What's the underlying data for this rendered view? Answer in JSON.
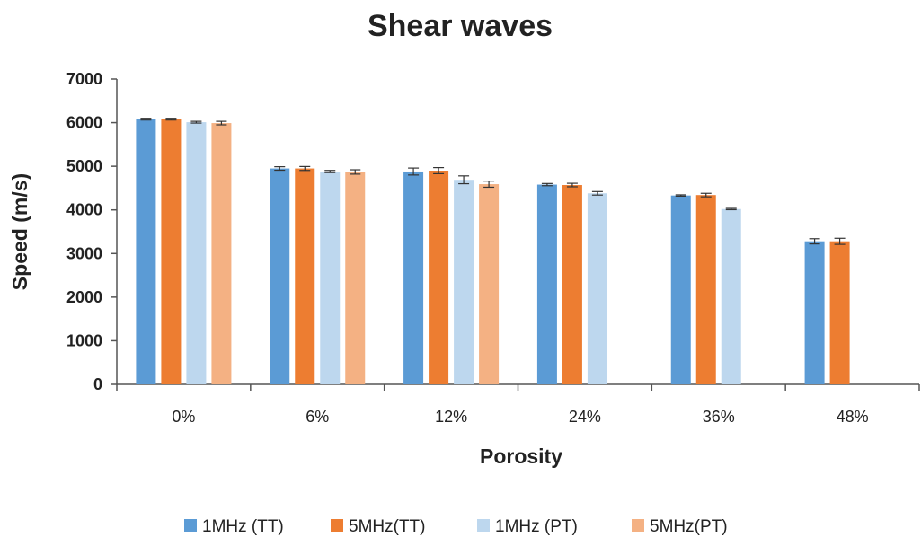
{
  "chart_data": {
    "type": "bar",
    "title": "Shear waves",
    "xlabel": "Porosity",
    "ylabel": "Speed (m/s)",
    "ylim": [
      0,
      7000
    ],
    "yticks": [
      0,
      1000,
      2000,
      3000,
      4000,
      5000,
      6000,
      7000
    ],
    "categories": [
      "0%",
      "6%",
      "12%",
      "24%",
      "36%",
      "48%"
    ],
    "grid": false,
    "legend_position": "bottom",
    "series": [
      {
        "name": "1MHz (TT)",
        "color": "#5b9bd5",
        "values": [
          6080,
          4950,
          4880,
          4580,
          4330,
          3280
        ],
        "errors": [
          20,
          40,
          80,
          25,
          15,
          60
        ]
      },
      {
        "name": "5MHz(TT)",
        "color": "#ed7d31",
        "values": [
          6080,
          4950,
          4900,
          4570,
          4340,
          3280
        ],
        "errors": [
          20,
          45,
          70,
          40,
          40,
          70
        ]
      },
      {
        "name": "1MHz (PT)",
        "color": "#bdd7ee",
        "values": [
          6010,
          4880,
          4690,
          4380,
          4020,
          null
        ],
        "errors": [
          20,
          25,
          90,
          40,
          15,
          null
        ]
      },
      {
        "name": "5MHz(PT)",
        "color": "#f4b183",
        "values": [
          5990,
          4870,
          4590,
          null,
          null,
          null
        ],
        "errors": [
          40,
          50,
          70,
          null,
          null,
          null
        ]
      }
    ]
  }
}
